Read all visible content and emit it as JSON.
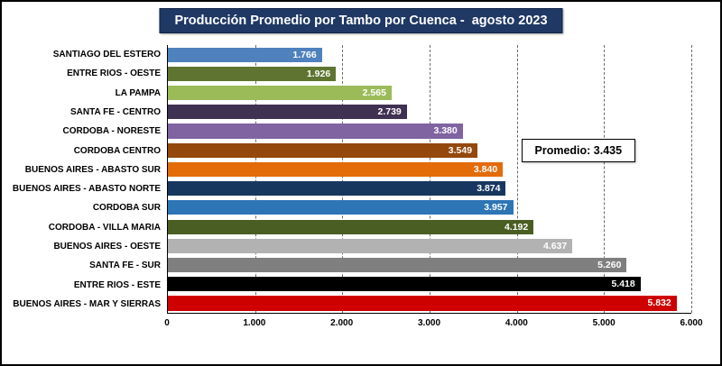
{
  "chart_data": {
    "type": "bar",
    "orientation": "horizontal",
    "title": "Producción Promedio por Tambo por Cuenca -  agosto 2023",
    "categories": [
      "SANTIAGO DEL ESTERO",
      "ENTRE RIOS - OESTE",
      "LA PAMPA",
      "SANTA FE - CENTRO",
      "CORDOBA - NORESTE",
      "CORDOBA CENTRO",
      "BUENOS AIRES - ABASTO SUR",
      "BUENOS AIRES - ABASTO NORTE",
      "CORDOBA SUR",
      "CORDOBA - VILLA MARIA",
      "BUENOS AIRES - OESTE",
      "SANTA FE - SUR",
      "ENTRE RIOS - ESTE",
      "BUENOS AIRES - MAR Y SIERRAS"
    ],
    "values": [
      1766,
      1926,
      2565,
      2739,
      3380,
      3549,
      3840,
      3874,
      3957,
      4192,
      4637,
      5260,
      5418,
      5832
    ],
    "value_labels": [
      "1.766",
      "1.926",
      "2.565",
      "2.739",
      "3.380",
      "3.549",
      "3.840",
      "3.874",
      "3.957",
      "4.192",
      "4.637",
      "5.260",
      "5.418",
      "5.832"
    ],
    "bar_colors": [
      "#4F81BD",
      "#5E7430",
      "#9BBB59",
      "#3F3151",
      "#8064A2",
      "#94480B",
      "#E36C09",
      "#17375E",
      "#2E75B6",
      "#4A5E23",
      "#B2B2B2",
      "#7F7F7F",
      "#000000",
      "#CE0000"
    ],
    "xlim": [
      0,
      6000
    ],
    "x_ticks": [
      {
        "value": 0,
        "label": "0"
      },
      {
        "value": 1000,
        "label": "1.000"
      },
      {
        "value": 2000,
        "label": "2.000"
      },
      {
        "value": 3000,
        "label": "3.000"
      },
      {
        "value": 4000,
        "label": "4.000"
      },
      {
        "value": 5000,
        "label": "5.000"
      },
      {
        "value": 6000,
        "label": "6.000"
      }
    ],
    "grid": "dashed-vertical",
    "legend": "none",
    "value_label_position": "inside-end",
    "average_annotation": {
      "text": "Promedio: 3.435",
      "value": 3435
    }
  },
  "colors": {
    "title_bg": "#1F3864",
    "title_text": "#FFFFFF",
    "frame_border": "#000000",
    "annotation_bg": "#FFFFFF"
  }
}
